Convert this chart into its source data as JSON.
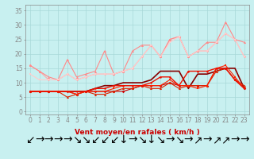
{
  "x": [
    0,
    1,
    2,
    3,
    4,
    5,
    6,
    7,
    8,
    9,
    10,
    11,
    12,
    13,
    14,
    15,
    16,
    17,
    18,
    19,
    20,
    21,
    22,
    23
  ],
  "background_color": "#c8f0f0",
  "grid_color": "#a8d8d8",
  "xlabel": "Vent moyen/en rafales ( km/h )",
  "ylim": [
    -1,
    37
  ],
  "xlim": [
    -0.5,
    23.5
  ],
  "yticks": [
    0,
    5,
    10,
    15,
    20,
    25,
    30,
    35
  ],
  "lines": [
    {
      "y": [
        7,
        7,
        7,
        7,
        7,
        6,
        7,
        7,
        7,
        7,
        7,
        8,
        9,
        9,
        9,
        10,
        9,
        9,
        9,
        9,
        15,
        15,
        11,
        8
      ],
      "color": "#cc0000",
      "lw": 0.8,
      "marker": "D",
      "ms": 1.8,
      "zorder": 5
    },
    {
      "y": [
        7,
        7,
        7,
        7,
        5,
        6,
        7,
        6,
        6,
        7,
        8,
        8,
        9,
        8,
        8,
        10,
        8,
        9,
        9,
        9,
        14,
        15,
        11,
        9
      ],
      "color": "#dd2200",
      "lw": 0.8,
      "marker": "^",
      "ms": 2.2,
      "zorder": 5
    },
    {
      "y": [
        7,
        7,
        7,
        7,
        7,
        6,
        7,
        7,
        7,
        8,
        9,
        9,
        9,
        9,
        9,
        11,
        9,
        9,
        8,
        9,
        15,
        16,
        12,
        8
      ],
      "color": "#ff2200",
      "lw": 0.8,
      "marker": "s",
      "ms": 1.8,
      "zorder": 5
    },
    {
      "y": [
        7,
        7,
        7,
        7,
        7,
        7,
        7,
        8,
        8,
        9,
        9,
        9,
        9,
        10,
        12,
        12,
        9,
        14,
        14,
        14,
        15,
        15,
        11,
        8
      ],
      "color": "#ee1100",
      "lw": 1.0,
      "marker": "o",
      "ms": 1.8,
      "zorder": 5
    },
    {
      "y": [
        16,
        14,
        11,
        11,
        13,
        11,
        12,
        13,
        13,
        13,
        14,
        15,
        19,
        23,
        19,
        25,
        26,
        19,
        21,
        21,
        24,
        27,
        25,
        19
      ],
      "color": "#ffaaaa",
      "lw": 0.8,
      "marker": "D",
      "ms": 1.8,
      "zorder": 3
    },
    {
      "y": [
        16,
        14,
        12,
        11,
        18,
        12,
        13,
        14,
        21,
        13,
        14,
        21,
        23,
        23,
        19,
        25,
        26,
        19,
        21,
        24,
        24,
        31,
        25,
        24
      ],
      "color": "#ff8888",
      "lw": 0.8,
      "marker": "^",
      "ms": 2.2,
      "zorder": 3
    },
    {
      "y": [
        13,
        11,
        11,
        11,
        13,
        11,
        12,
        13,
        13,
        13,
        14,
        15,
        19,
        23,
        19,
        24,
        26,
        19,
        21,
        21,
        24,
        27,
        25,
        19
      ],
      "color": "#ffcccc",
      "lw": 0.8,
      "marker": "s",
      "ms": 1.8,
      "zorder": 3
    },
    {
      "y": [
        7,
        7,
        7,
        7,
        7,
        7,
        7,
        8,
        9,
        9,
        10,
        10,
        10,
        11,
        14,
        14,
        14,
        8,
        13,
        13,
        14,
        15,
        15,
        8
      ],
      "color": "#880000",
      "lw": 1.2,
      "marker": null,
      "ms": 0,
      "zorder": 4
    }
  ],
  "arrows": [
    "↙",
    "→",
    "→",
    "→",
    "→",
    "↘",
    "↘",
    "↙",
    "↙",
    "↙",
    "↓",
    "→",
    "↘",
    "↓",
    "↘",
    "→",
    "↘",
    "→",
    "↗",
    "→",
    "↗",
    "↗",
    "→",
    "→"
  ],
  "tick_fontsize": 5.5,
  "label_fontsize": 6.5,
  "arrow_fontsize": 5
}
